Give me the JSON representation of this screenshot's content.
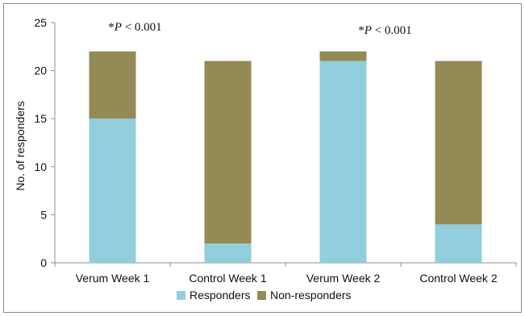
{
  "chart_data": {
    "type": "bar",
    "stacked": true,
    "categories": [
      "Verum Week 1",
      "Control Week 1",
      "Verum Week 2",
      "Control Week 2"
    ],
    "series": [
      {
        "name": "Responders",
        "values": [
          15,
          2,
          21,
          4
        ],
        "color": "#92cddc"
      },
      {
        "name": "Non-responders",
        "values": [
          7,
          19,
          1,
          17
        ],
        "color": "#948a54"
      }
    ],
    "xlabel": "",
    "ylabel": "No. of responders",
    "ylim": [
      0,
      25
    ],
    "yticks": [
      0,
      5,
      10,
      15,
      20,
      25
    ],
    "grid": false,
    "legend_position": "bottom",
    "annotations": [
      {
        "prefix": "*",
        "italic": "P",
        "suffix": " < 0.001",
        "category": "Verum Week 1"
      },
      {
        "prefix": "*",
        "italic": "P",
        "suffix": " < 0.001",
        "category": "Verum Week 2"
      }
    ]
  }
}
